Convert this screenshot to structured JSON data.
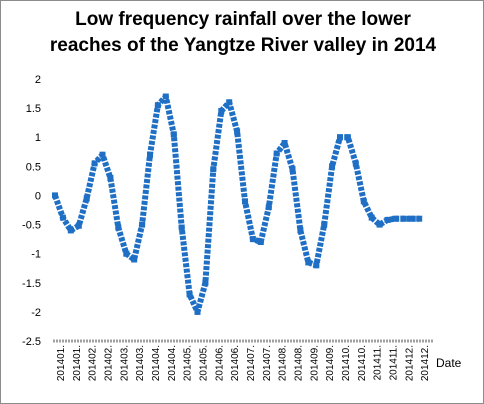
{
  "chart_data": {
    "type": "line",
    "title_lines": [
      "Low frequency rainfall over the lower",
      "reaches of the Yangtze River valley in 2014"
    ],
    "xlabel": "Date",
    "ylabel": "",
    "ylim": [
      -2.5,
      2
    ],
    "y_ticks": [
      "2",
      "1.5",
      "1",
      "0.5",
      "0",
      "-0.5",
      "-1",
      "-1.5",
      "-2",
      "-2.5"
    ],
    "x_tick_labels": [
      "201401",
      "201401",
      "201402",
      "201402",
      "201403",
      "201403",
      "201404",
      "201404",
      "201405",
      "201405",
      "201406",
      "201406",
      "201407",
      "201407",
      "201408",
      "201408",
      "201409",
      "201409",
      "201410",
      "201410",
      "201411",
      "201411",
      "201412",
      "201412"
    ],
    "grid": false,
    "legend": "none",
    "series_color": "#1f6fc4",
    "series": [
      {
        "x": [
          0,
          0.5,
          1,
          1.5,
          2,
          2.5,
          3,
          3.5,
          4,
          4.5,
          5,
          5.5,
          6,
          6.5,
          7,
          7.5,
          8,
          8.5,
          9,
          9.5,
          10,
          10.5,
          11,
          11.5,
          12,
          12.5,
          13,
          13.5,
          14,
          14.5,
          15,
          15.5,
          16,
          16.5,
          17,
          17.5,
          18,
          18.5,
          19,
          19.5,
          20,
          20.5,
          21,
          21.5,
          22,
          22.5,
          23
        ],
        "values": [
          0,
          -0.38,
          -0.6,
          -0.52,
          -0.05,
          0.55,
          0.7,
          0.3,
          -0.55,
          -1.0,
          -1.1,
          -0.5,
          0.7,
          1.55,
          1.7,
          1.05,
          -0.55,
          -1.7,
          -2.0,
          -1.5,
          0.45,
          1.45,
          1.6,
          1.1,
          -0.1,
          -0.75,
          -0.8,
          -0.2,
          0.72,
          0.9,
          0.45,
          -0.6,
          -1.15,
          -1.2,
          -0.5,
          0.5,
          1.0,
          1.0,
          0.55,
          -0.1,
          -0.38,
          -0.5,
          -0.42,
          -0.4,
          -0.4,
          -0.4,
          -0.4
        ]
      }
    ]
  }
}
